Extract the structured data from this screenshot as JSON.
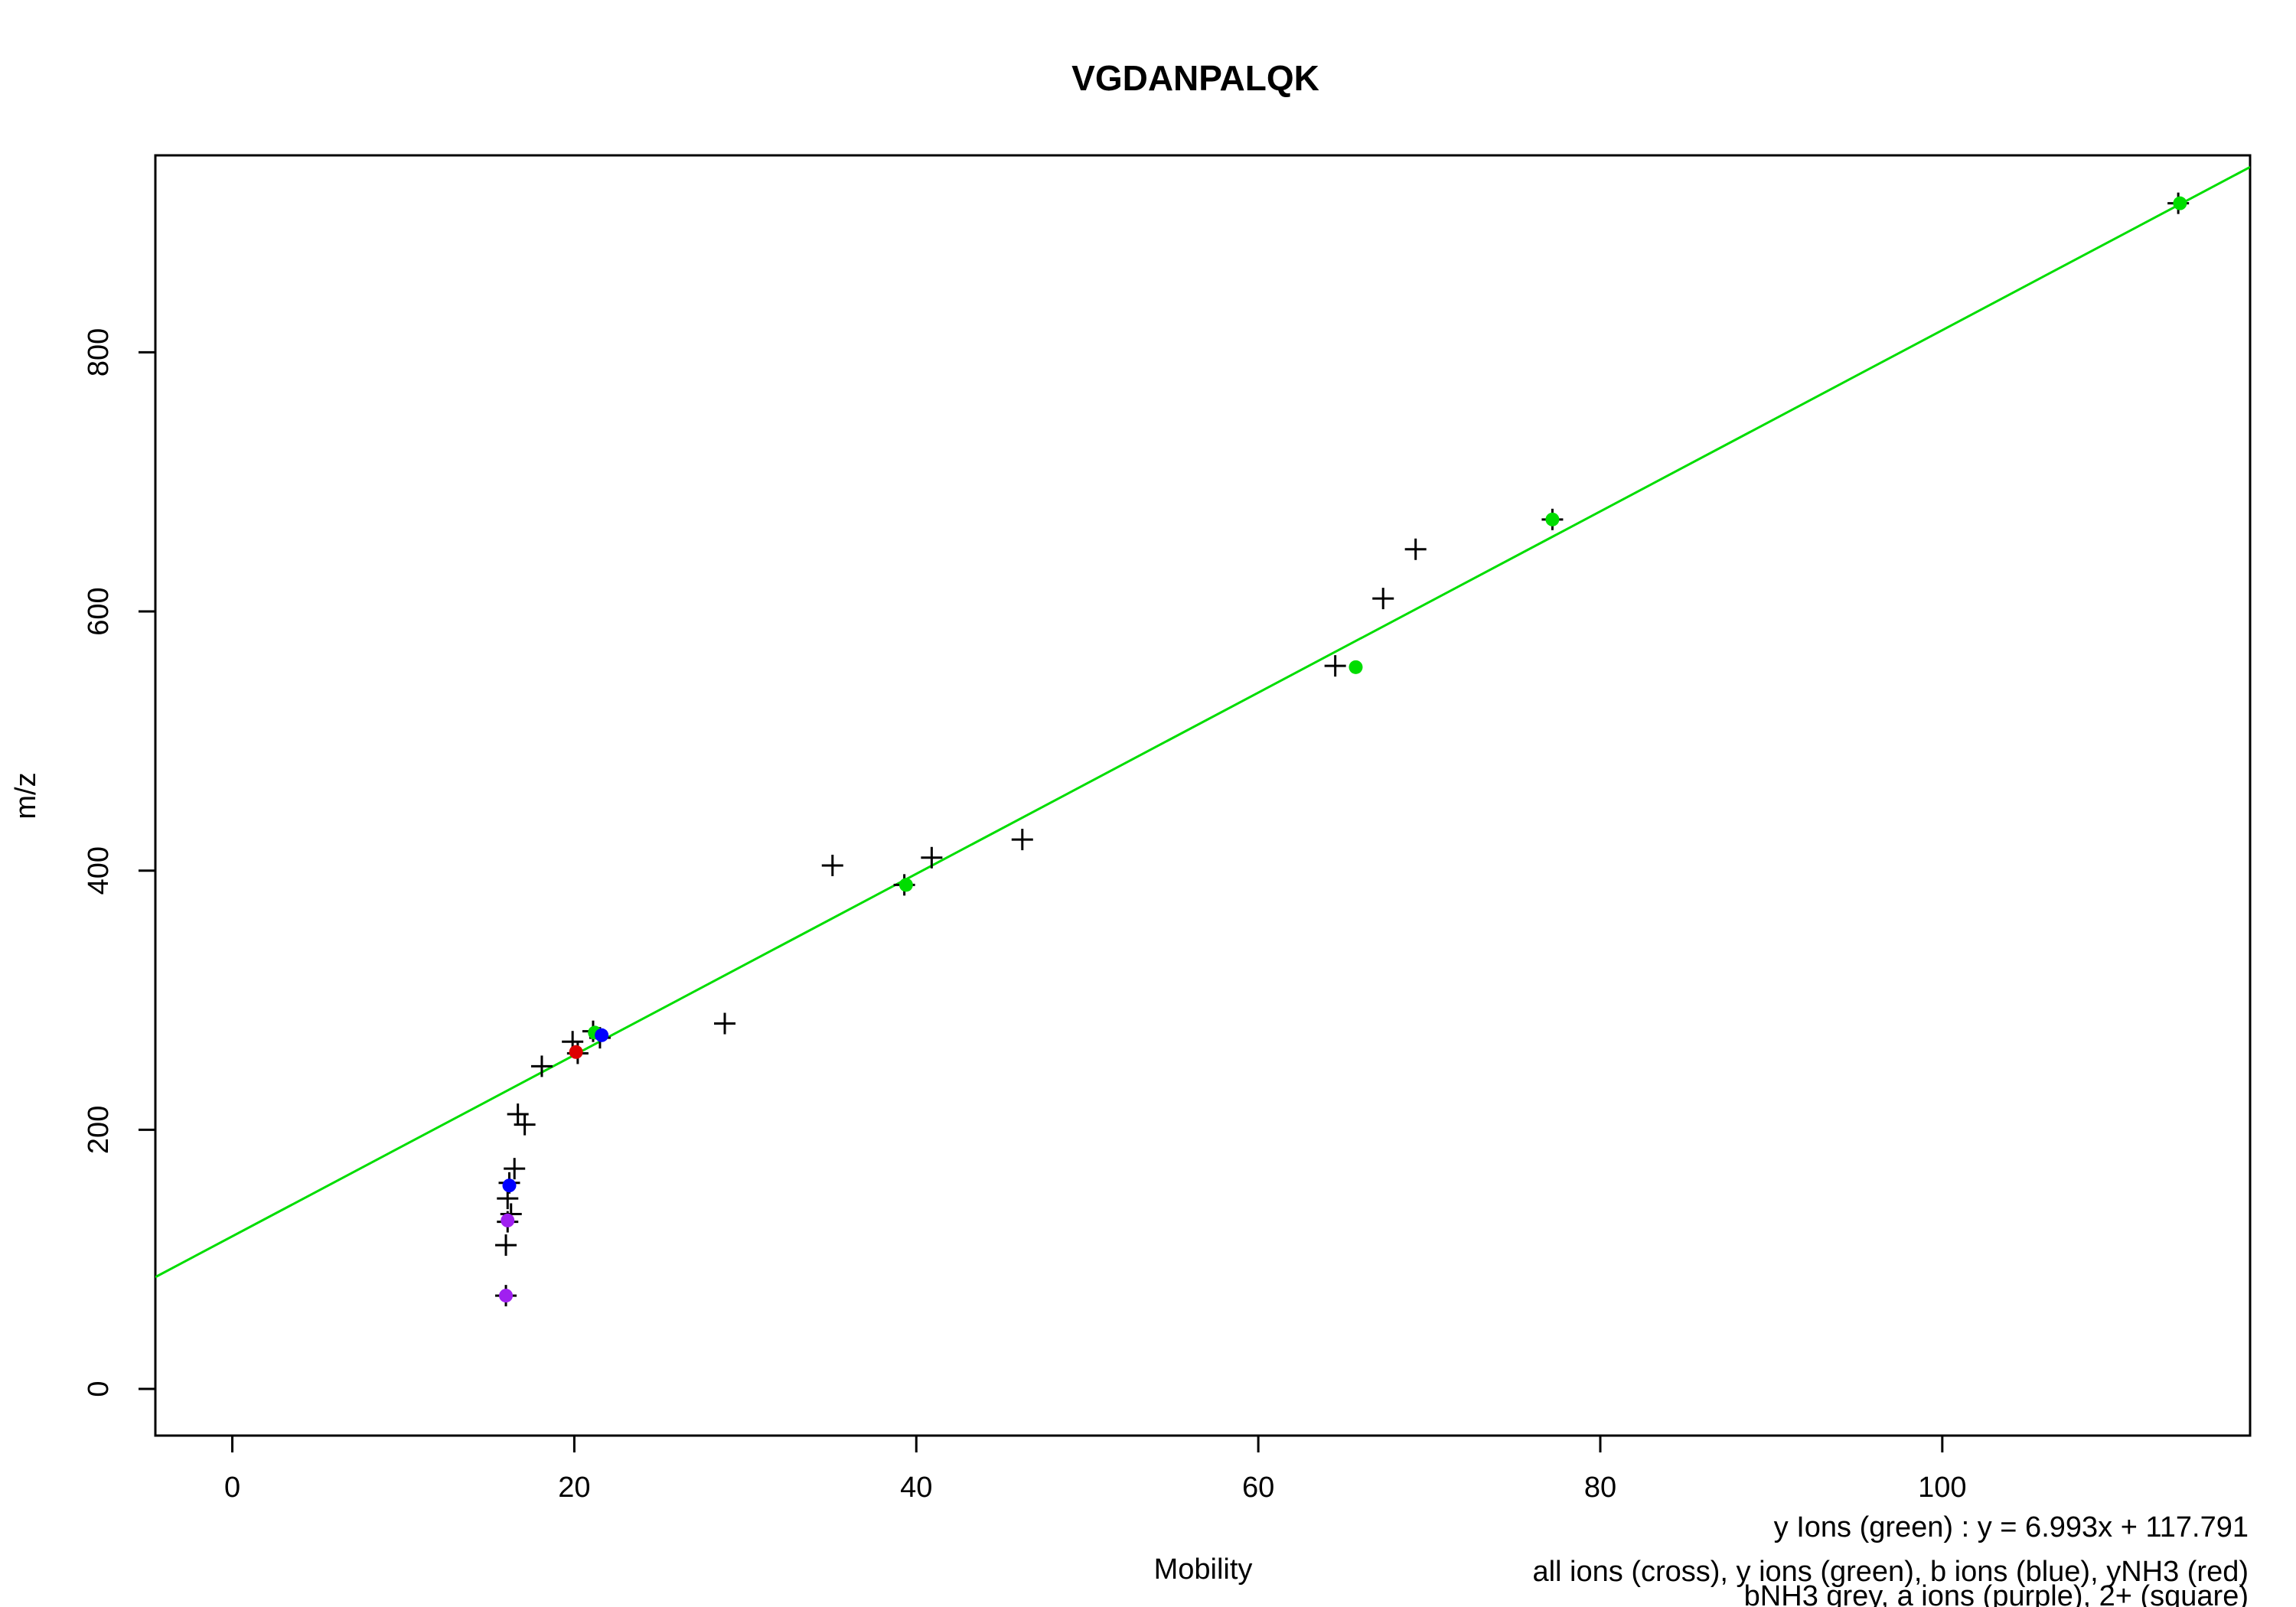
{
  "chart_data": {
    "type": "scatter",
    "title": "VGDANPALQK",
    "xlabel": "Mobility",
    "ylabel": "m/z",
    "xlim": [
      -4.5,
      118
    ],
    "ylim": [
      -36,
      952
    ],
    "x_ticks": [
      0,
      20,
      40,
      60,
      80,
      100
    ],
    "y_ticks": [
      0,
      200,
      400,
      600,
      800
    ],
    "fit_line": {
      "label": "y Ions (green)",
      "slope": 6.993,
      "intercept": 117.791,
      "color": "#00dd00"
    },
    "fit_equation": "y Ions (green) : y = 6.993x + 117.791",
    "legend_lines": [
      "all ions (cross), y ions (green), b ions (blue), yNH3 (red)",
      "bNH3 grey, a ions (purple), 2+ (square)"
    ],
    "series": [
      {
        "name": "all ions (cross)",
        "marker": "cross",
        "color": "#000000",
        "points": [
          [
            113.8,
            915
          ],
          [
            77.2,
            671
          ],
          [
            69.2,
            648
          ],
          [
            67.3,
            610
          ],
          [
            64.5,
            558
          ],
          [
            46.2,
            424
          ],
          [
            40.9,
            410
          ],
          [
            35.1,
            404
          ],
          [
            39.3,
            389
          ],
          [
            28.8,
            282
          ],
          [
            21.1,
            276
          ],
          [
            21.5,
            271
          ],
          [
            19.9,
            268
          ],
          [
            20.2,
            259
          ],
          [
            18.1,
            249
          ],
          [
            16.7,
            212
          ],
          [
            17.1,
            204
          ],
          [
            16.5,
            170
          ],
          [
            16.2,
            159
          ],
          [
            16.1,
            147
          ],
          [
            16.3,
            135
          ],
          [
            16.1,
            129
          ],
          [
            16.0,
            111
          ],
          [
            16.0,
            72
          ]
        ]
      },
      {
        "name": "y ions (green)",
        "marker": "dot",
        "color": "#00dd00",
        "points": [
          [
            113.9,
            915
          ],
          [
            77.2,
            671
          ],
          [
            65.7,
            557
          ],
          [
            39.4,
            389
          ],
          [
            21.2,
            275
          ]
        ]
      },
      {
        "name": "b ions (blue)",
        "marker": "dot",
        "color": "#0000ff",
        "points": [
          [
            21.6,
            273
          ],
          [
            16.2,
            157
          ]
        ]
      },
      {
        "name": "yNH3 (red)",
        "marker": "dot",
        "color": "#dd0000",
        "points": [
          [
            20.1,
            260
          ]
        ]
      },
      {
        "name": "a ions (purple)",
        "marker": "dot",
        "color": "#a020f0",
        "points": [
          [
            16.1,
            130
          ],
          [
            16.0,
            72
          ]
        ]
      }
    ]
  }
}
